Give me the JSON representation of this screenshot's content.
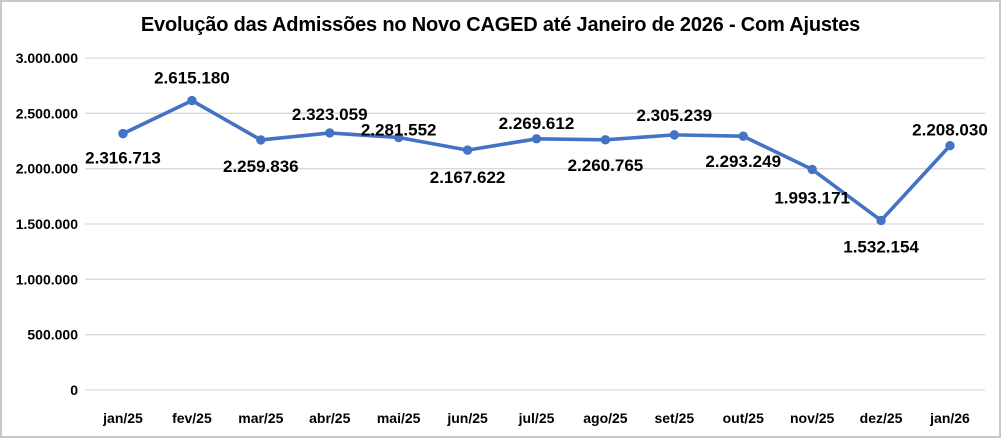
{
  "chart_data": {
    "type": "line",
    "title": "Evolução das Admissões no Novo CAGED até Janeiro de 2026 - Com Ajustes",
    "categories": [
      "jan/25",
      "fev/25",
      "mar/25",
      "abr/25",
      "mai/25",
      "jun/25",
      "jul/25",
      "ago/25",
      "set/25",
      "out/25",
      "nov/25",
      "dez/25",
      "jan/26"
    ],
    "values": [
      2316713,
      2615180,
      2259836,
      2323059,
      2281552,
      2167622,
      2269612,
      2260765,
      2305239,
      2293249,
      1993171,
      1532154,
      2208030
    ],
    "data_labels": [
      "2.316.713",
      "2.615.180",
      "2.259.836",
      "2.323.059",
      "2.281.552",
      "2.167.622",
      "2.269.612",
      "2.260.765",
      "2.305.239",
      "2.293.249",
      "1.993.171",
      "1.532.154",
      "2.208.030"
    ],
    "label_positions": [
      "below",
      "above",
      "below",
      "above",
      "above",
      "below",
      "above",
      "below",
      "above",
      "below",
      "below",
      "below",
      "above"
    ],
    "xlabel": "",
    "ylabel": "",
    "y_axis": {
      "min": 0,
      "max": 3000000,
      "tick_values": [
        3000000,
        2500000,
        2000000,
        1500000,
        1000000,
        500000,
        0
      ],
      "tick_labels": [
        "3.000.000",
        "2.500.000",
        "2.000.000",
        "1.500.000",
        "1.000.000",
        "500.000",
        "0"
      ]
    },
    "grid": "horizontal",
    "legend": "none",
    "colors": {
      "line": "#4472C4",
      "marker": "#4472C4",
      "gridline": "#D9D9D9",
      "text": "#000000",
      "background": "#FFFFFF",
      "frame_border": "#C9C9C9"
    }
  }
}
